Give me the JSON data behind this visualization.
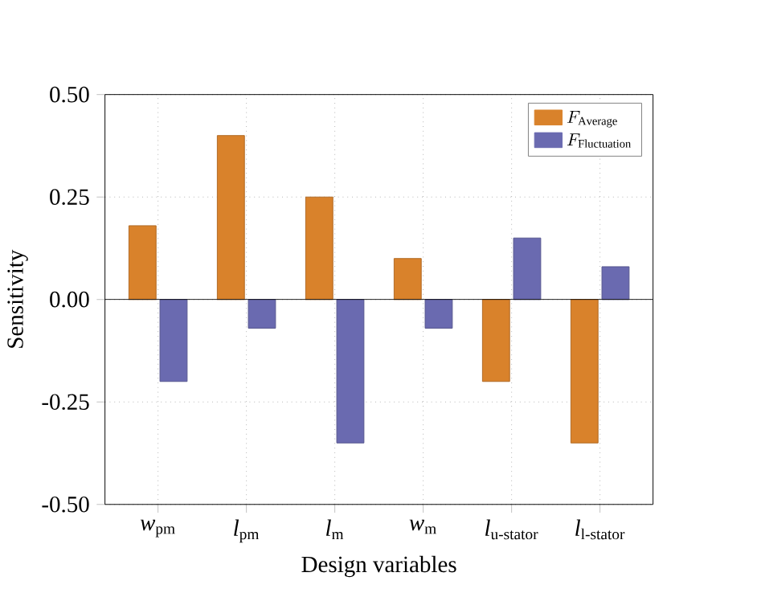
{
  "chart_data": {
    "type": "bar",
    "xlabel": "Design variables",
    "ylabel": "Sensitivity",
    "categories": [
      "*w*$_{pm}$",
      "*l*$_{pm}$",
      "*l*$_{m}$",
      "*w*$_{m}$",
      "*l*$_{u-stator}$",
      "*l*$_{l-stator}$"
    ],
    "series": [
      {
        "name": "F_{\\mathrm{Average}}",
        "color": "#d9822b",
        "values": [
          0.18,
          0.4,
          0.25,
          0.1,
          -0.2,
          -0.35
        ]
      },
      {
        "name": "F_{\\mathrm{Fluctuation}}",
        "color": "#6a6ab0",
        "values": [
          -0.2,
          -0.07,
          -0.35,
          -0.07,
          0.15,
          0.08
        ]
      }
    ],
    "ylim": [
      -0.5,
      0.5
    ],
    "yticks": [
      {
        "value": -0.5,
        "label": "-0.50"
      },
      {
        "value": -0.25,
        "label": "-0.25"
      },
      {
        "value": 0,
        "label": "0.00"
      },
      {
        "value": 0.25,
        "label": "0.25"
      },
      {
        "value": 0.5,
        "label": "0.50"
      }
    ],
    "grid": true,
    "legend": "top right"
  }
}
